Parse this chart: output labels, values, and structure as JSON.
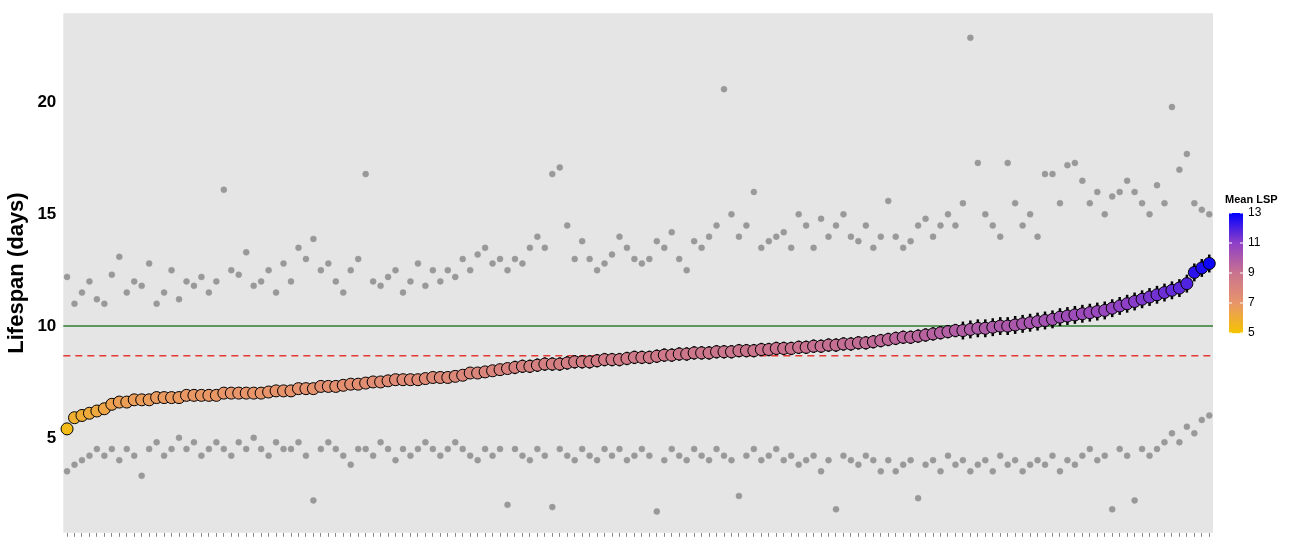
{
  "chart_data": {
    "type": "scatter",
    "ylabel": "Lifespan (days)",
    "clabel": "Mean LSP",
    "clim": [
      5,
      13
    ],
    "cticks": [
      5,
      7,
      9,
      11,
      13
    ],
    "grid": false,
    "marker": "circle",
    "categories": [
      null,
      null,
      null,
      null,
      null,
      null,
      null,
      null,
      null,
      null,
      null,
      null,
      null,
      null,
      null,
      null,
      null,
      null,
      null,
      null,
      null,
      null,
      null,
      null,
      null,
      null,
      null,
      null,
      null,
      null,
      null,
      null,
      null,
      null,
      null,
      null,
      null,
      null,
      null,
      null,
      null,
      null,
      null,
      null,
      null,
      null,
      null,
      null,
      null,
      null,
      null,
      null,
      null,
      null,
      null,
      null,
      null,
      null,
      null,
      null,
      null,
      null,
      null,
      null,
      null,
      null,
      null,
      null,
      null,
      null,
      null,
      null,
      null,
      null,
      null,
      null,
      null,
      null,
      null,
      null,
      null,
      null,
      null,
      null,
      null,
      null,
      null,
      null,
      null,
      null,
      null,
      null,
      null,
      null,
      null,
      null,
      null,
      null,
      null,
      null,
      null,
      null,
      null,
      null,
      null,
      null,
      null,
      null,
      null,
      null,
      null,
      null,
      null,
      null,
      null,
      null,
      null,
      null,
      null,
      null,
      null,
      null,
      null,
      null,
      null,
      null,
      null,
      null,
      null,
      null,
      null,
      null,
      null,
      null,
      null,
      null,
      null,
      null,
      null,
      null,
      null,
      null,
      null,
      null,
      null,
      null,
      null,
      null,
      null,
      null,
      null,
      null,
      null,
      null
    ],
    "ylim": [
      0.75,
      24
    ],
    "yticks": [
      5,
      10,
      15,
      20
    ],
    "ref_lines": [
      {
        "axis": "y",
        "value": 10,
        "color": "#2e7d32",
        "line_style": "solid"
      },
      {
        "axis": "y",
        "value": 8.67,
        "color": "#e53935",
        "line_style": "dashed"
      }
    ],
    "series": [
      {
        "color": "#999999",
        "values": [
          12.2,
          11.0,
          11.5,
          12.0,
          11.2,
          11.0,
          12.3,
          13.1,
          11.5,
          12.0,
          11.8,
          12.8,
          11.0,
          11.5,
          12.5,
          11.2,
          12.0,
          11.8,
          12.2,
          11.5,
          12.0,
          16.1,
          12.5,
          12.3,
          13.3,
          11.8,
          12.0,
          12.5,
          11.5,
          12.8,
          12.0,
          13.5,
          13.0,
          13.9,
          12.5,
          12.8,
          12.0,
          11.5,
          12.5,
          13.0,
          16.8,
          12.0,
          11.8,
          12.2,
          12.5,
          11.5,
          12.0,
          12.8,
          11.8,
          12.5,
          12.0,
          12.5,
          12.2,
          13.0,
          12.5,
          13.2,
          13.5,
          12.8,
          13.0,
          12.5,
          13.0,
          12.8,
          13.5,
          14.0,
          13.5,
          16.8,
          17.1,
          14.5,
          13.0,
          13.8,
          13.0,
          12.5,
          12.8,
          13.2,
          14.0,
          13.5,
          13.0,
          12.8,
          13.0,
          13.8,
          13.5,
          14.2,
          13.0,
          12.5,
          13.8,
          13.5,
          14.0,
          14.5,
          20.6,
          15.0,
          14.0,
          14.5,
          16.0,
          13.5,
          13.8,
          14.0,
          14.2,
          13.5,
          15.0,
          14.5,
          13.5,
          14.8,
          14.0,
          14.5,
          15.0,
          14.0,
          13.8,
          14.5,
          13.5,
          14.0,
          15.6,
          14.0,
          13.5,
          13.8,
          14.5,
          14.8,
          14.0,
          14.5,
          15.0,
          14.5,
          15.5,
          22.9,
          17.3,
          15.0,
          14.5,
          14.0,
          17.3,
          15.5,
          14.5,
          15.0,
          14.0,
          16.8,
          16.8,
          15.5,
          17.2,
          17.3,
          16.5,
          15.5,
          16.0,
          15.0,
          15.8,
          16.0,
          16.5,
          16.0,
          15.5,
          15.0,
          16.3,
          15.5,
          19.8,
          17.0,
          17.7,
          15.5,
          15.2,
          15.0
        ]
      },
      {
        "color": "#999999",
        "values": [
          3.5,
          3.8,
          4.0,
          4.2,
          4.5,
          4.2,
          4.5,
          4.0,
          4.5,
          4.2,
          3.3,
          4.5,
          4.8,
          4.2,
          4.5,
          5.0,
          4.5,
          4.8,
          4.2,
          4.5,
          4.8,
          4.5,
          4.2,
          4.8,
          4.5,
          5.0,
          4.5,
          4.2,
          4.8,
          4.5,
          4.5,
          4.8,
          4.2,
          2.2,
          4.5,
          4.8,
          4.5,
          4.2,
          3.8,
          4.5,
          4.5,
          4.2,
          4.8,
          4.5,
          4.0,
          4.5,
          4.2,
          4.5,
          4.8,
          4.5,
          4.2,
          4.5,
          4.8,
          4.5,
          4.2,
          4.0,
          4.5,
          4.2,
          4.5,
          2.0,
          4.5,
          4.2,
          4.0,
          4.5,
          4.2,
          1.9,
          4.5,
          4.2,
          4.0,
          4.5,
          4.2,
          4.0,
          4.5,
          4.2,
          4.5,
          4.0,
          4.2,
          4.5,
          4.2,
          1.7,
          4.0,
          4.5,
          4.2,
          4.0,
          4.5,
          4.2,
          4.0,
          4.5,
          4.2,
          4.0,
          2.4,
          4.2,
          4.5,
          4.0,
          4.2,
          4.5,
          4.0,
          4.2,
          3.8,
          4.0,
          4.2,
          3.5,
          4.0,
          1.8,
          4.2,
          4.0,
          3.8,
          4.2,
          4.0,
          3.5,
          4.0,
          3.5,
          3.8,
          4.0,
          2.3,
          3.8,
          4.0,
          3.5,
          4.2,
          3.8,
          4.0,
          3.5,
          3.8,
          4.0,
          3.5,
          4.2,
          3.8,
          4.0,
          3.5,
          3.8,
          4.0,
          3.8,
          4.2,
          3.5,
          4.0,
          3.8,
          4.2,
          4.5,
          4.0,
          4.2,
          1.8,
          4.5,
          4.2,
          2.2,
          4.5,
          4.2,
          4.5,
          4.8,
          5.2,
          4.8,
          5.5,
          5.2,
          5.8,
          6.0
        ]
      },
      {
        "color": "#000000",
        "values": [
          5.4,
          5.9,
          6.0,
          6.1,
          6.2,
          6.3,
          6.5,
          6.6,
          6.6,
          6.7,
          6.7,
          6.7,
          6.8,
          6.8,
          6.8,
          6.8,
          6.9,
          6.9,
          6.9,
          6.9,
          6.9,
          7.0,
          7.0,
          7.0,
          7.0,
          7.0,
          7.0,
          7.05,
          7.1,
          7.1,
          7.1,
          7.2,
          7.2,
          7.2,
          7.3,
          7.3,
          7.3,
          7.35,
          7.4,
          7.4,
          7.45,
          7.5,
          7.5,
          7.55,
          7.6,
          7.6,
          7.6,
          7.6,
          7.65,
          7.7,
          7.7,
          7.7,
          7.75,
          7.8,
          7.9,
          7.9,
          7.95,
          8.0,
          8.05,
          8.1,
          8.15,
          8.2,
          8.2,
          8.25,
          8.3,
          8.3,
          8.3,
          8.35,
          8.4,
          8.4,
          8.4,
          8.45,
          8.5,
          8.5,
          8.5,
          8.55,
          8.6,
          8.6,
          8.6,
          8.65,
          8.7,
          8.7,
          8.75,
          8.75,
          8.8,
          8.8,
          8.8,
          8.85,
          8.85,
          8.85,
          8.9,
          8.9,
          8.9,
          8.95,
          8.95,
          9.0,
          9.0,
          9.0,
          9.05,
          9.05,
          9.1,
          9.1,
          9.15,
          9.15,
          9.2,
          9.2,
          9.25,
          9.25,
          9.3,
          9.35,
          9.4,
          9.45,
          9.5,
          9.5,
          9.55,
          9.6,
          9.65,
          9.7,
          9.75,
          9.8,
          9.8,
          9.85,
          9.9,
          9.9,
          9.95,
          10.0,
          10.0,
          10.05,
          10.1,
          10.15,
          10.2,
          10.25,
          10.3,
          10.4,
          10.45,
          10.5,
          10.55,
          10.6,
          10.65,
          10.7,
          10.8,
          10.9,
          11.0,
          11.1,
          11.2,
          11.3,
          11.4,
          11.5,
          11.6,
          11.7,
          11.9,
          12.4,
          12.6,
          12.8
        ],
        "cvalues": [
          5.4,
          5.9,
          6.0,
          6.1,
          6.2,
          6.3,
          6.5,
          6.6,
          6.6,
          6.7,
          6.7,
          6.7,
          6.8,
          6.8,
          6.8,
          6.8,
          6.9,
          6.9,
          6.9,
          6.9,
          6.9,
          7.0,
          7.0,
          7.0,
          7.0,
          7.0,
          7.0,
          7.05,
          7.1,
          7.1,
          7.1,
          7.2,
          7.2,
          7.2,
          7.3,
          7.3,
          7.3,
          7.35,
          7.4,
          7.4,
          7.45,
          7.5,
          7.5,
          7.55,
          7.6,
          7.6,
          7.6,
          7.6,
          7.65,
          7.7,
          7.7,
          7.7,
          7.75,
          7.8,
          7.9,
          7.9,
          7.95,
          8.0,
          8.05,
          8.1,
          8.15,
          8.2,
          8.2,
          8.25,
          8.3,
          8.3,
          8.3,
          8.35,
          8.4,
          8.4,
          8.4,
          8.45,
          8.5,
          8.5,
          8.5,
          8.55,
          8.6,
          8.6,
          8.6,
          8.65,
          8.7,
          8.7,
          8.75,
          8.75,
          8.8,
          8.8,
          8.8,
          8.85,
          8.85,
          8.85,
          8.9,
          8.9,
          8.9,
          8.95,
          8.95,
          9.0,
          9.0,
          9.0,
          9.05,
          9.05,
          9.1,
          9.1,
          9.15,
          9.15,
          9.2,
          9.2,
          9.25,
          9.25,
          9.3,
          9.35,
          9.4,
          9.45,
          9.5,
          9.5,
          9.55,
          9.6,
          9.65,
          9.7,
          9.75,
          9.8,
          9.8,
          9.85,
          9.9,
          9.9,
          9.95,
          10.0,
          10.0,
          10.05,
          10.1,
          10.15,
          10.2,
          10.25,
          10.3,
          10.4,
          10.45,
          10.5,
          10.55,
          10.6,
          10.65,
          10.7,
          10.8,
          10.9,
          11.0,
          11.1,
          11.2,
          11.3,
          11.4,
          11.5,
          11.6,
          11.7,
          11.9,
          12.4,
          12.6,
          12.8
        ],
        "errors": [
          0.2,
          0.2,
          0.2,
          0.2,
          0.2,
          0.2,
          0.2,
          0.2,
          0.2,
          0.2,
          0.2,
          0.2,
          0.2,
          0.2,
          0.2,
          0.2,
          0.2,
          0.2,
          0.2,
          0.2,
          0.2,
          0.2,
          0.2,
          0.2,
          0.2,
          0.2,
          0.2,
          0.2,
          0.2,
          0.2,
          0.2,
          0.2,
          0.2,
          0.2,
          0.2,
          0.2,
          0.2,
          0.2,
          0.2,
          0.2,
          0.2,
          0.2,
          0.2,
          0.2,
          0.2,
          0.2,
          0.2,
          0.2,
          0.2,
          0.2,
          0.2,
          0.2,
          0.2,
          0.2,
          0.2,
          0.2,
          0.2,
          0.2,
          0.2,
          0.2,
          0.3,
          0.3,
          0.3,
          0.3,
          0.3,
          0.3,
          0.3,
          0.3,
          0.3,
          0.3,
          0.3,
          0.3,
          0.3,
          0.3,
          0.3,
          0.3,
          0.3,
          0.3,
          0.3,
          0.3,
          0.3,
          0.3,
          0.3,
          0.3,
          0.3,
          0.3,
          0.3,
          0.3,
          0.3,
          0.3,
          0.3,
          0.3,
          0.3,
          0.3,
          0.3,
          0.3,
          0.3,
          0.3,
          0.3,
          0.3,
          0.3,
          0.3,
          0.3,
          0.3,
          0.3,
          0.3,
          0.3,
          0.3,
          0.3,
          0.3,
          0.3,
          0.3,
          0.3,
          0.3,
          0.3,
          0.3,
          0.3,
          0.3,
          0.3,
          0.3,
          0.4,
          0.4,
          0.4,
          0.4,
          0.4,
          0.4,
          0.4,
          0.4,
          0.4,
          0.4,
          0.4,
          0.4,
          0.4,
          0.4,
          0.4,
          0.4,
          0.4,
          0.4,
          0.4,
          0.4,
          0.4,
          0.4,
          0.4,
          0.4,
          0.4,
          0.4,
          0.4,
          0.4,
          0.4,
          0.4,
          0.4,
          0.4,
          0.4,
          0.4
        ]
      }
    ]
  }
}
